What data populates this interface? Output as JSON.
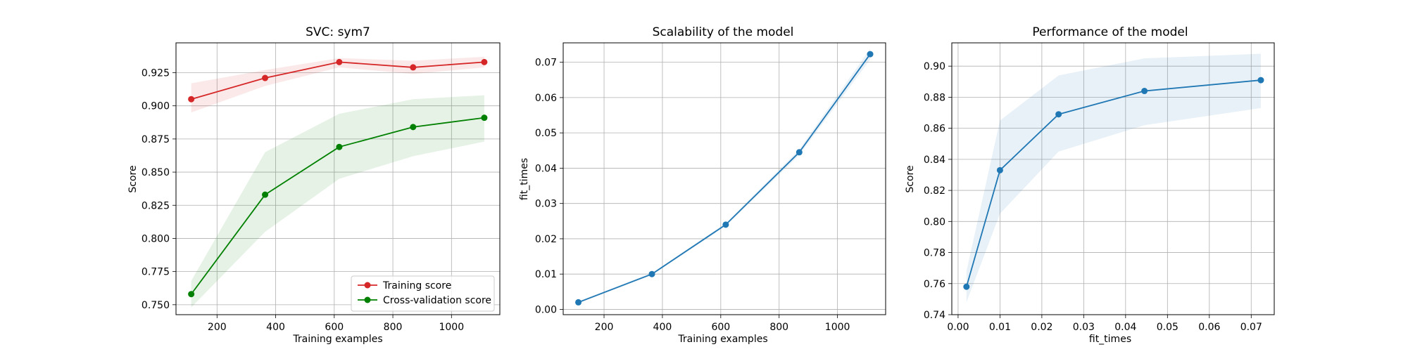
{
  "figure": {
    "colors": {
      "train": "#d62728",
      "cv": "#008000",
      "blue": "#1f77b4",
      "grid": "#b0b0b0",
      "axes": "#000000"
    }
  },
  "chart_data": [
    {
      "type": "line",
      "title": "SVC: sym7",
      "xlabel": "Training examples",
      "ylabel": "Score",
      "xlim": [
        60,
        1165
      ],
      "ylim": [
        0.7425,
        0.9475
      ],
      "xticks": [
        200,
        400,
        600,
        800,
        1000
      ],
      "xtick_labels": [
        "200",
        "400",
        "600",
        "800",
        "1000"
      ],
      "yticks": [
        0.75,
        0.775,
        0.8,
        0.825,
        0.85,
        0.875,
        0.9,
        0.925
      ],
      "ytick_labels": [
        "0.750",
        "0.775",
        "0.800",
        "0.825",
        "0.850",
        "0.875",
        "0.900",
        "0.925"
      ],
      "grid": true,
      "legend_position": "lower-right",
      "x": [
        112,
        364,
        617,
        869,
        1112
      ],
      "series": [
        {
          "name": "Training score",
          "color": "#d62728",
          "values": [
            0.905,
            0.921,
            0.933,
            0.929,
            0.933
          ],
          "band_lower": [
            0.895,
            0.915,
            0.929,
            0.924,
            0.929
          ],
          "band_upper": [
            0.917,
            0.927,
            0.936,
            0.934,
            0.937
          ]
        },
        {
          "name": "Cross-validation score",
          "color": "#008000",
          "values": [
            0.758,
            0.833,
            0.869,
            0.884,
            0.891
          ],
          "band_lower": [
            0.748,
            0.805,
            0.845,
            0.862,
            0.873
          ],
          "band_upper": [
            0.768,
            0.865,
            0.894,
            0.905,
            0.908
          ]
        }
      ]
    },
    {
      "type": "line",
      "title": "Scalability of the model",
      "xlabel": "Training examples",
      "ylabel": "fit_times",
      "xlim": [
        60,
        1165
      ],
      "ylim": [
        -0.0015,
        0.0755
      ],
      "xticks": [
        200,
        400,
        600,
        800,
        1000
      ],
      "xtick_labels": [
        "200",
        "400",
        "600",
        "800",
        "1000"
      ],
      "yticks": [
        0,
        0.01,
        0.02,
        0.03,
        0.04,
        0.05,
        0.06,
        0.07
      ],
      "ytick_labels": [
        "0.00",
        "0.01",
        "0.02",
        "0.03",
        "0.04",
        "0.05",
        "0.06",
        "0.07"
      ],
      "grid": true,
      "x": [
        112,
        364,
        617,
        869,
        1112
      ],
      "series": [
        {
          "color": "#1f77b4",
          "values": [
            0.002,
            0.01,
            0.024,
            0.0445,
            0.0723
          ],
          "band_lower": [
            0.0017,
            0.0097,
            0.0236,
            0.0437,
            0.0708
          ],
          "band_upper": [
            0.0023,
            0.0103,
            0.0244,
            0.0453,
            0.0738
          ]
        }
      ]
    },
    {
      "type": "line",
      "title": "Performance of the model",
      "xlabel": "fit_times",
      "ylabel": "Score",
      "xlim": [
        -0.0015,
        0.0755
      ],
      "ylim": [
        0.74,
        0.915
      ],
      "xticks": [
        0,
        0.01,
        0.02,
        0.03,
        0.04,
        0.05,
        0.06,
        0.07
      ],
      "xtick_labels": [
        "0.00",
        "0.01",
        "0.02",
        "0.03",
        "0.04",
        "0.05",
        "0.06",
        "0.07"
      ],
      "yticks": [
        0.74,
        0.76,
        0.78,
        0.8,
        0.82,
        0.84,
        0.86,
        0.88,
        0.9
      ],
      "ytick_labels": [
        "0.74",
        "0.76",
        "0.78",
        "0.80",
        "0.82",
        "0.84",
        "0.86",
        "0.88",
        "0.90"
      ],
      "grid": true,
      "x": [
        0.002,
        0.01,
        0.024,
        0.0445,
        0.0723
      ],
      "series": [
        {
          "color": "#1f77b4",
          "values": [
            0.758,
            0.833,
            0.869,
            0.884,
            0.891
          ],
          "band_lower": [
            0.748,
            0.805,
            0.845,
            0.862,
            0.873
          ],
          "band_upper": [
            0.768,
            0.865,
            0.894,
            0.905,
            0.908
          ]
        }
      ]
    }
  ]
}
